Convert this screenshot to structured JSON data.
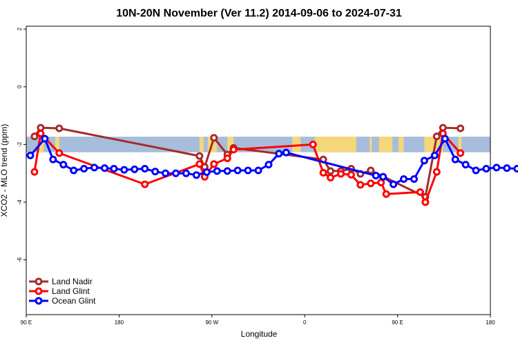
{
  "chart_data": {
    "type": "line",
    "title": "10N-20N November (Ver 11.2)   2014-09-06 to 2024-07-31",
    "xlabel": "Longitude",
    "ylabel": "XCO2 - MLO trend (ppm)",
    "xlim": [
      90,
      540
    ],
    "ylim": [
      -7.9,
      2.1
    ],
    "x_ticks": [
      {
        "value": 90,
        "label": "90 E"
      },
      {
        "value": 180,
        "label": "180"
      },
      {
        "value": 270,
        "label": "90 W"
      },
      {
        "value": 360,
        "label": "0"
      },
      {
        "value": 450,
        "label": "90 E"
      },
      {
        "value": 540,
        "label": "180"
      }
    ],
    "y_ticks": [
      {
        "value": 2,
        "label": "2"
      },
      {
        "value": 0,
        "label": "0"
      },
      {
        "value": -2,
        "label": "-2"
      },
      {
        "value": -4,
        "label": "-4"
      },
      {
        "value": -6,
        "label": "-6"
      }
    ],
    "legend_position": "bottom-left",
    "background_map": {
      "ocean_color": "#a6bddb",
      "land_color": "#f5d77a",
      "y_range": [
        -2.27,
        -1.73
      ]
    },
    "series": [
      {
        "name": "Land Nadir",
        "color": "#a52a2a",
        "points": [
          [
            98,
            -1.72
          ],
          [
            104,
            -1.42
          ],
          [
            122,
            -1.44
          ],
          [
            258,
            -2.4
          ],
          [
            263,
            -2.78
          ],
          [
            272,
            -1.77
          ],
          [
            285,
            -2.35
          ],
          [
            291,
            -2.12
          ],
          [
            378,
            -2.52
          ],
          [
            385,
            -2.92
          ],
          [
            395,
            -2.92
          ],
          [
            405,
            -2.84
          ],
          [
            414,
            -3.02
          ],
          [
            424,
            -2.9
          ],
          [
            477,
            -3.82
          ],
          [
            488,
            -1.72
          ],
          [
            494,
            -1.42
          ],
          [
            511,
            -1.44
          ]
        ]
      },
      {
        "name": "Land Glint",
        "color": "#ff0000",
        "points": [
          [
            98,
            -2.95
          ],
          [
            104,
            -1.62
          ],
          [
            122,
            -2.3
          ],
          [
            205,
            -3.38
          ],
          [
            258,
            -2.68
          ],
          [
            263,
            -3.12
          ],
          [
            272,
            -2.68
          ],
          [
            285,
            -2.48
          ],
          [
            291,
            -2.18
          ],
          [
            368,
            -2.0
          ],
          [
            378,
            -2.98
          ],
          [
            385,
            -3.15
          ],
          [
            395,
            -3.02
          ],
          [
            405,
            -3.05
          ],
          [
            414,
            -3.4
          ],
          [
            424,
            -3.35
          ],
          [
            434,
            -3.32
          ],
          [
            439,
            -3.72
          ],
          [
            472,
            -3.65
          ],
          [
            477,
            -4.0
          ],
          [
            488,
            -2.95
          ],
          [
            494,
            -1.62
          ],
          [
            511,
            -2.3
          ]
        ]
      },
      {
        "name": "Ocean Glint",
        "color": "#0000ff",
        "points": [
          [
            94,
            -2.38
          ],
          [
            108,
            -1.8
          ],
          [
            116,
            -2.52
          ],
          [
            126,
            -2.7
          ],
          [
            136,
            -2.9
          ],
          [
            146,
            -2.84
          ],
          [
            156,
            -2.8
          ],
          [
            166,
            -2.82
          ],
          [
            175,
            -2.84
          ],
          [
            185,
            -2.88
          ],
          [
            195,
            -2.86
          ],
          [
            205,
            -2.84
          ],
          [
            215,
            -2.94
          ],
          [
            225,
            -3.0
          ],
          [
            235,
            -3.0
          ],
          [
            245,
            -3.0
          ],
          [
            255,
            -3.06
          ],
          [
            265,
            -2.96
          ],
          [
            275,
            -2.92
          ],
          [
            285,
            -2.92
          ],
          [
            295,
            -2.9
          ],
          [
            305,
            -2.9
          ],
          [
            315,
            -2.9
          ],
          [
            325,
            -2.7
          ],
          [
            335,
            -2.32
          ],
          [
            342,
            -2.28
          ],
          [
            429,
            -3.08
          ],
          [
            436,
            -3.12
          ],
          [
            446,
            -3.38
          ],
          [
            456,
            -3.2
          ],
          [
            466,
            -3.2
          ],
          [
            476,
            -2.56
          ],
          [
            486,
            -2.38
          ],
          [
            496,
            -1.8
          ],
          [
            506,
            -2.52
          ],
          [
            516,
            -2.7
          ],
          [
            526,
            -2.9
          ],
          [
            536,
            -2.84
          ],
          [
            546,
            -2.8
          ],
          [
            556,
            -2.82
          ],
          [
            566,
            -2.84
          ]
        ]
      }
    ]
  }
}
